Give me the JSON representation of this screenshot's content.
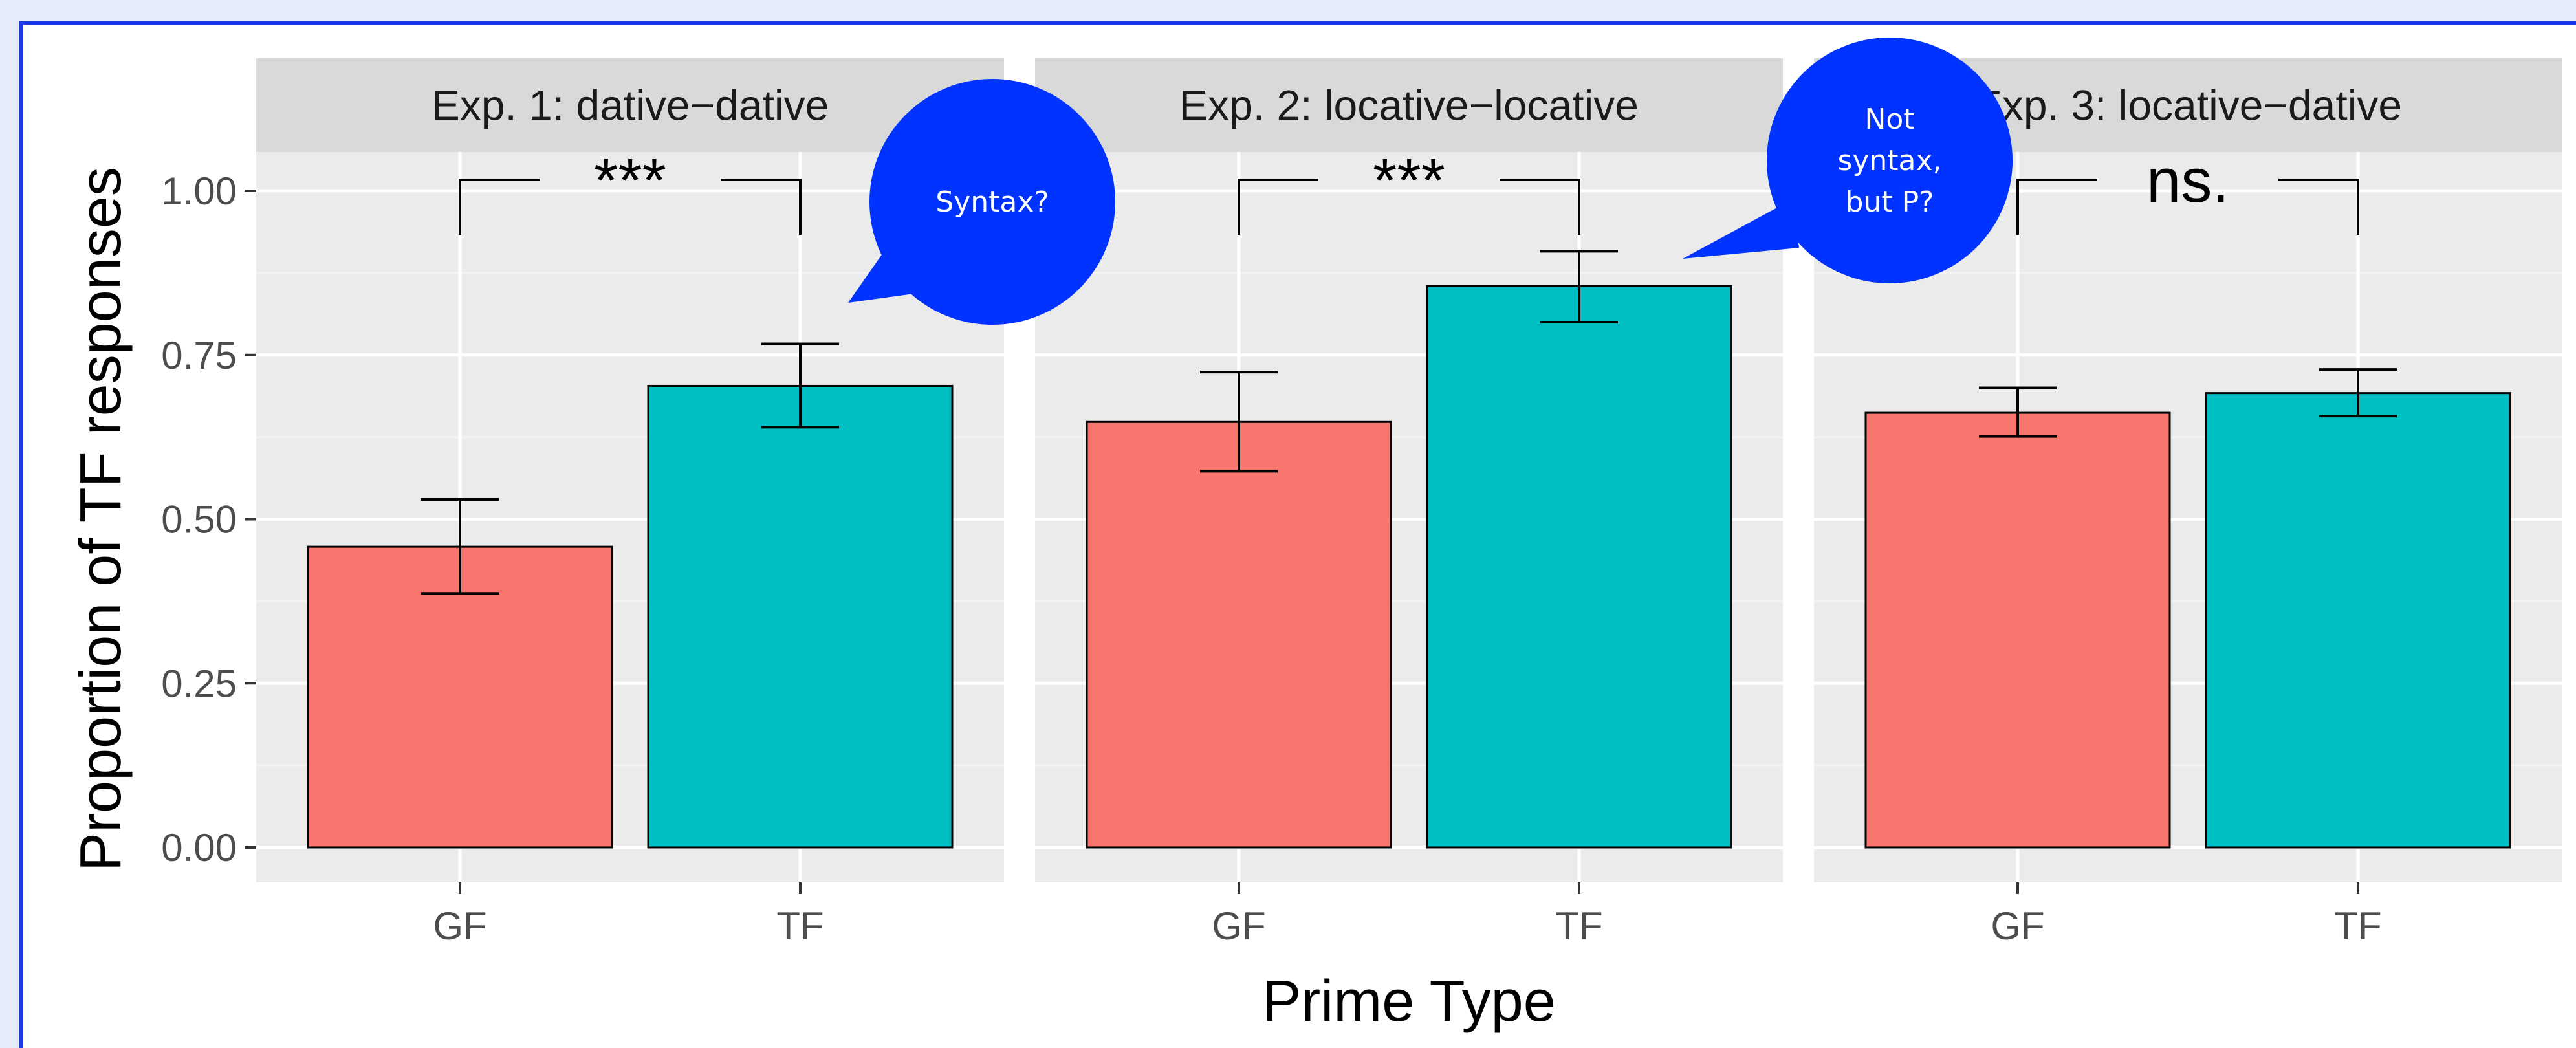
{
  "chart_data": {
    "type": "bar",
    "xlabel": "Prime Type",
    "ylabel": "Proportion of TF responses",
    "ylim": [
      0,
      1.05
    ],
    "yticks": [
      "0.00",
      "0.25",
      "0.50",
      "0.75",
      "1.00"
    ],
    "ytick_values": [
      0,
      0.25,
      0.5,
      0.75,
      1.0
    ],
    "categories": [
      "GF",
      "TF"
    ],
    "colors": {
      "GF": "#f8766d",
      "TF": "#00bfc4"
    },
    "grid": true,
    "panels": [
      {
        "strip": "Exp. 1: dative−dative",
        "values": [
          0.458,
          0.703
        ],
        "errors": [
          [
            0.387,
            0.53
          ],
          [
            0.64,
            0.767
          ]
        ],
        "significance": "***"
      },
      {
        "strip": "Exp. 2: locative−locative",
        "values": [
          0.648,
          0.855
        ],
        "errors": [
          [
            0.573,
            0.724
          ],
          [
            0.8,
            0.908
          ]
        ],
        "significance": "***"
      },
      {
        "strip": "Exp. 3: locative−dative",
        "values": [
          0.662,
          0.692
        ],
        "errors": [
          [
            0.626,
            0.7
          ],
          [
            0.657,
            0.728
          ]
        ],
        "significance": "ns."
      }
    ]
  },
  "annotations": {
    "bubble_1": {
      "lines": [
        "Syntax?"
      ],
      "color": "#0033ff"
    },
    "bubble_2": {
      "lines": [
        "Not",
        "syntax,",
        "but P?"
      ],
      "color": "#0033ff"
    }
  }
}
